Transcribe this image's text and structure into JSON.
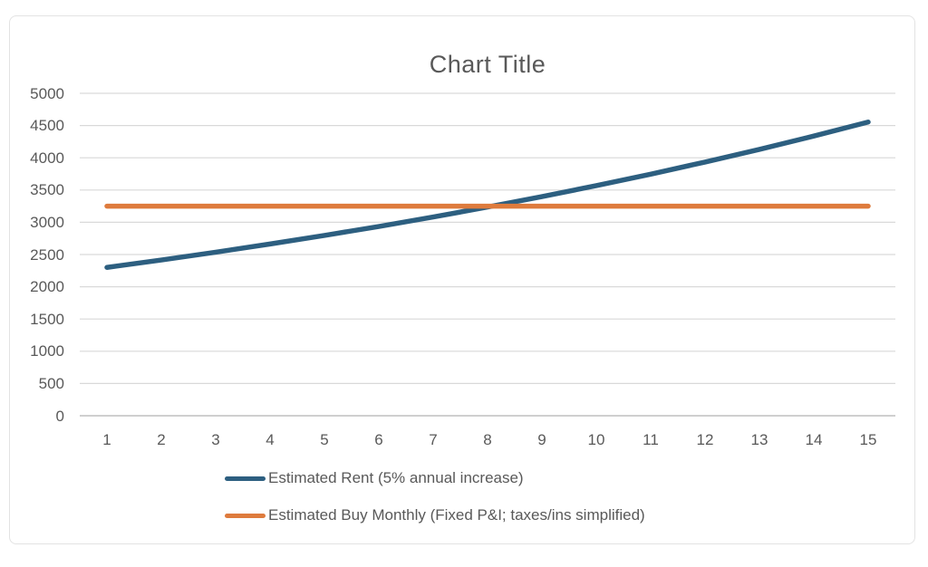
{
  "chart_data": {
    "type": "line",
    "title": "Chart Title",
    "x": [
      1,
      2,
      3,
      4,
      5,
      6,
      7,
      8,
      9,
      10,
      11,
      12,
      13,
      14,
      15
    ],
    "series": [
      {
        "name": "Estimated Rent (5% annual increase)",
        "color": "#2D5F80",
        "values": [
          2300,
          2415,
          2536,
          2663,
          2796,
          2935,
          3082,
          3236,
          3398,
          3568,
          3746,
          3934,
          4130,
          4337,
          4554
        ]
      },
      {
        "name": "Estimated Buy Monthly (Fixed P&I; taxes/ins simplified)",
        "color": "#DE7B3D",
        "values": [
          3250,
          3250,
          3250,
          3250,
          3250,
          3250,
          3250,
          3250,
          3250,
          3250,
          3250,
          3250,
          3250,
          3250,
          3250
        ]
      }
    ],
    "xlabel": "",
    "ylabel": "",
    "ylim": [
      0,
      5000
    ],
    "ytick_step": 500,
    "grid": true,
    "legend_position": "bottom"
  },
  "styles": {
    "title_color": "#595959",
    "axis_label_color": "#595959",
    "legend_label_color": "#595959",
    "gridline_color": "#D9D9D9",
    "axis_line_color": "#BFBFBF",
    "frame_border_color": "#E3E3E3",
    "background": "#FFFFFF"
  }
}
